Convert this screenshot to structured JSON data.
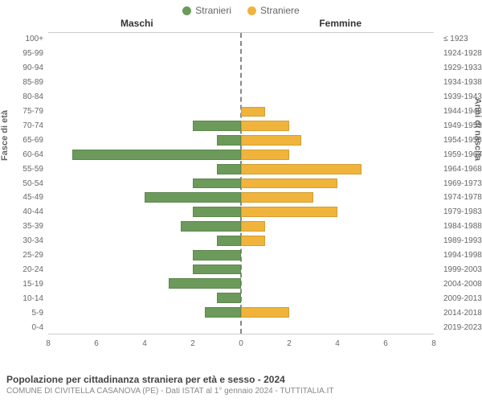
{
  "chart": {
    "type": "population-pyramid",
    "legend": {
      "male": {
        "label": "Stranieri",
        "color": "#6b9a5b"
      },
      "female": {
        "label": "Straniere",
        "color": "#f0b43c"
      }
    },
    "headers": {
      "left": "Maschi",
      "right": "Femmine"
    },
    "axis": {
      "left_title": "Fasce di età",
      "right_title": "Anni di nascita",
      "x_max": 8,
      "x_ticks": [
        8,
        6,
        4,
        2,
        0,
        2,
        4,
        6,
        8
      ]
    },
    "style": {
      "background": "#ffffff",
      "grid_color": "#cccccc",
      "centerline_color": "#888888",
      "tick_fontsize": 10,
      "label_color": "#666666",
      "bar_height_pct": 72
    },
    "rows": [
      {
        "age": "100+",
        "birth": "≤ 1923",
        "m": 0,
        "f": 0
      },
      {
        "age": "95-99",
        "birth": "1924-1928",
        "m": 0,
        "f": 0
      },
      {
        "age": "90-94",
        "birth": "1929-1933",
        "m": 0,
        "f": 0
      },
      {
        "age": "85-89",
        "birth": "1934-1938",
        "m": 0,
        "f": 0
      },
      {
        "age": "80-84",
        "birth": "1939-1943",
        "m": 0,
        "f": 0
      },
      {
        "age": "75-79",
        "birth": "1944-1948",
        "m": 0,
        "f": 1
      },
      {
        "age": "70-74",
        "birth": "1949-1953",
        "m": 2,
        "f": 2
      },
      {
        "age": "65-69",
        "birth": "1954-1958",
        "m": 1,
        "f": 2.5
      },
      {
        "age": "60-64",
        "birth": "1959-1963",
        "m": 7,
        "f": 2
      },
      {
        "age": "55-59",
        "birth": "1964-1968",
        "m": 1,
        "f": 5
      },
      {
        "age": "50-54",
        "birth": "1969-1973",
        "m": 2,
        "f": 4
      },
      {
        "age": "45-49",
        "birth": "1974-1978",
        "m": 4,
        "f": 3
      },
      {
        "age": "40-44",
        "birth": "1979-1983",
        "m": 2,
        "f": 4
      },
      {
        "age": "35-39",
        "birth": "1984-1988",
        "m": 2.5,
        "f": 1
      },
      {
        "age": "30-34",
        "birth": "1989-1993",
        "m": 1,
        "f": 1
      },
      {
        "age": "25-29",
        "birth": "1994-1998",
        "m": 2,
        "f": 0
      },
      {
        "age": "20-24",
        "birth": "1999-2003",
        "m": 2,
        "f": 0
      },
      {
        "age": "15-19",
        "birth": "2004-2008",
        "m": 3,
        "f": 0
      },
      {
        "age": "10-14",
        "birth": "2009-2013",
        "m": 1,
        "f": 0
      },
      {
        "age": "5-9",
        "birth": "2014-2018",
        "m": 1.5,
        "f": 2
      },
      {
        "age": "0-4",
        "birth": "2019-2023",
        "m": 0,
        "f": 0
      }
    ]
  },
  "footer": {
    "caption": "Popolazione per cittadinanza straniera per età e sesso - 2024",
    "subcaption": "COMUNE DI CIVITELLA CASANOVA (PE) - Dati ISTAT al 1° gennaio 2024 - TUTTITALIA.IT"
  }
}
